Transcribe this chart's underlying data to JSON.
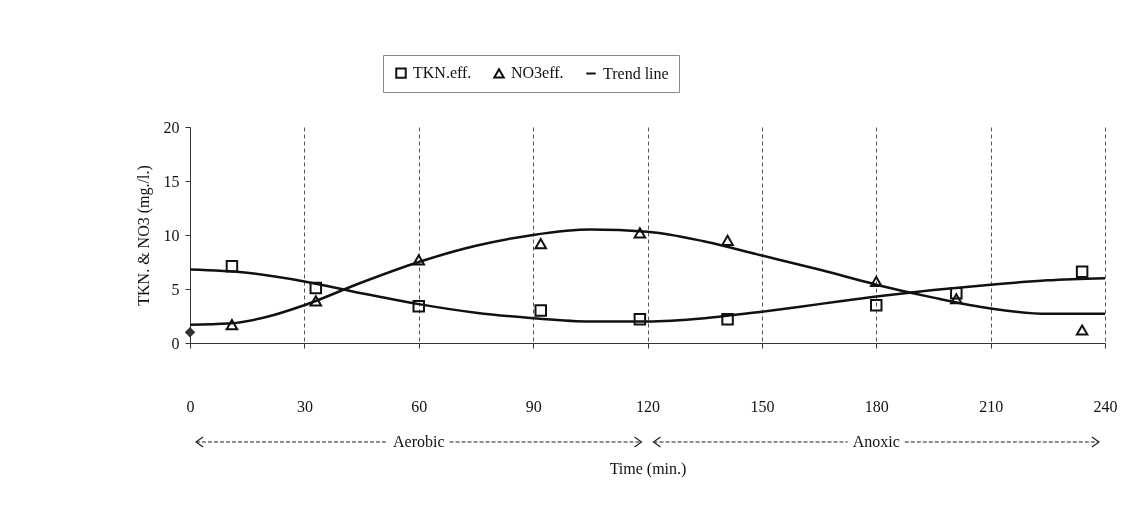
{
  "chart_data": {
    "type": "scatter",
    "xlabel": "Time (min.)",
    "ylabel": "TKN. & NO3 (mg./l.)",
    "xlim": [
      0,
      240
    ],
    "xticks": [
      0,
      30,
      60,
      90,
      120,
      150,
      180,
      210,
      240
    ],
    "ylim": [
      0,
      20
    ],
    "yticks": [
      0,
      5,
      10,
      15,
      20
    ],
    "grid": "x",
    "legend": "top",
    "annotations": [
      "Aerobic",
      "Anoxic"
    ],
    "series": [
      {
        "name": "TKN.eff.",
        "marker": "square",
        "color": "#111111",
        "x": [
          11,
          33,
          60,
          92,
          118,
          141,
          180,
          201,
          234
        ],
        "values": [
          7.1,
          5.1,
          3.4,
          3.0,
          2.2,
          2.2,
          3.5,
          4.6,
          6.6
        ]
      },
      {
        "name": "NO3eff.",
        "marker": "triangle",
        "color": "#111111",
        "x": [
          11,
          33,
          60,
          92,
          118,
          141,
          180,
          201,
          234
        ],
        "values": [
          1.7,
          3.9,
          7.7,
          9.2,
          10.2,
          9.5,
          5.7,
          4.1,
          1.2
        ]
      },
      {
        "marker": "diamond",
        "color": "#333333",
        "x": [
          0
        ],
        "values": [
          1.0
        ]
      },
      {
        "name": "Trend line",
        "type": "line",
        "color": "#111111",
        "x": [
          0,
          15,
          30,
          45,
          60,
          75,
          90,
          105,
          120,
          135,
          150,
          165,
          180,
          195,
          210,
          225,
          240
        ],
        "values": [
          6.8,
          6.5,
          5.7,
          4.6,
          3.6,
          2.8,
          2.3,
          2.0,
          2.0,
          2.3,
          2.9,
          3.6,
          4.3,
          4.9,
          5.4,
          5.8,
          6.0
        ]
      },
      {
        "type": "line",
        "color": "#111111",
        "x": [
          0,
          10,
          20,
          30,
          45,
          60,
          75,
          90,
          105,
          120,
          135,
          150,
          165,
          180,
          195,
          210,
          225,
          240
        ],
        "values": [
          1.7,
          1.8,
          2.4,
          3.5,
          5.6,
          7.5,
          9.0,
          10.0,
          10.5,
          10.3,
          9.4,
          8.1,
          6.8,
          5.4,
          4.2,
          3.2,
          2.7,
          2.7
        ]
      }
    ]
  }
}
